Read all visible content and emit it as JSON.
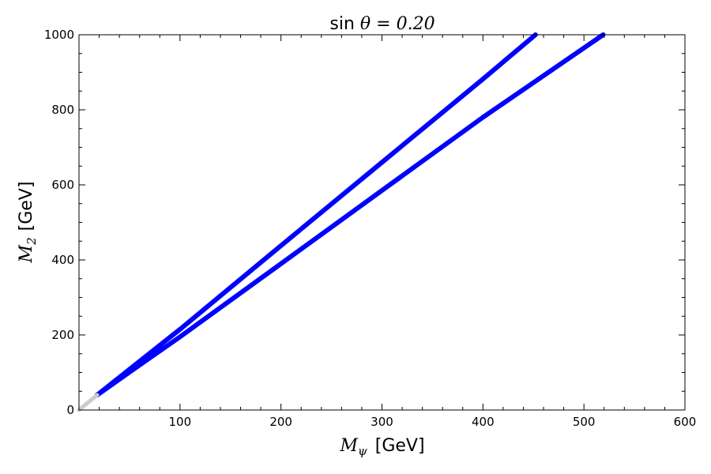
{
  "chart_data": {
    "type": "line",
    "title": {
      "prefix": "sin ",
      "symbol": "θ",
      "suffix": " = 0.20"
    },
    "xlabel": {
      "symbol": "M",
      "subscript": "ψ",
      "unit": "[GeV]"
    },
    "ylabel": {
      "symbol": "M",
      "subscript": "2",
      "unit": "[GeV]"
    },
    "xlim": [
      0,
      600
    ],
    "ylim": [
      0,
      1000
    ],
    "xticks": [
      100,
      200,
      300,
      400,
      500,
      600
    ],
    "yticks": [
      0,
      200,
      400,
      600,
      800,
      1000
    ],
    "xtick_labels": [
      "100",
      "200",
      "300",
      "400",
      "500",
      "600"
    ],
    "ytick_labels": [
      "0",
      "200",
      "400",
      "600",
      "800",
      "1000"
    ],
    "grid": false,
    "series": [
      {
        "color": "#0000ff",
        "x": [
          18,
          60,
          100,
          200,
          300,
          400,
          452
        ],
        "y": [
          40,
          130,
          215,
          438,
          660,
          882,
          1000
        ]
      },
      {
        "color": "#0000ff",
        "x": [
          18,
          60,
          100,
          200,
          300,
          400,
          519
        ],
        "y": [
          40,
          120,
          195,
          390,
          585,
          780,
          1000
        ]
      },
      {
        "color": "#cccccc",
        "x": [
          0,
          18
        ],
        "y": [
          0,
          40
        ]
      }
    ]
  }
}
